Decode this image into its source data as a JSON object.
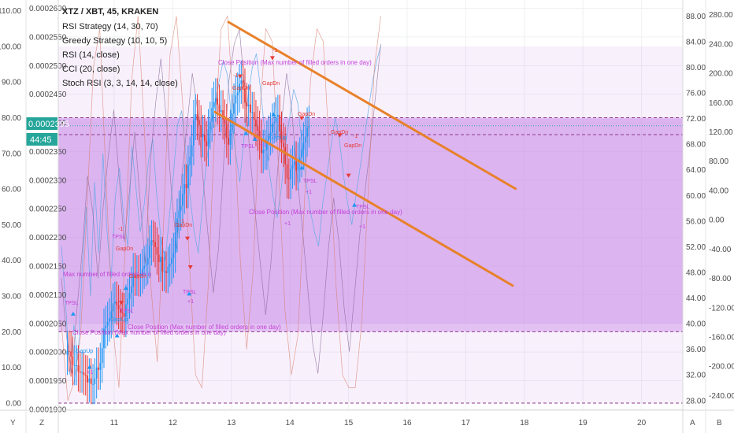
{
  "legend": {
    "symbol": "XTZ / XBT, 45, KRAKEN",
    "studies": [
      "RSI Strategy (14, 30, 70)",
      "Greedy Strategy (10, 10, 5)",
      "RSI (14, close)",
      "CCI (20, close)",
      "Stoch RSI (3, 3, 14, 14, close)"
    ]
  },
  "price_tag": {
    "value": "0.0002395",
    "countdown": "44:45",
    "color": "#26a69a"
  },
  "bottom_buttons": {
    "left_y": "Y",
    "left_z": "Z",
    "right_a": "A",
    "right_b": "B"
  },
  "annotations": [
    "Close Position (Max number of filled orders in one day)",
    "Close Position (Max number of filled orders in one day)",
    "Max number of filled orders in o",
    "Close Position (Max number of filled orders in one day)",
    "Close Position (Max number of filled orders in one day)"
  ],
  "marker_labels": {
    "gapdn": "GapDn",
    "gapup": "GapUp",
    "tpsl": "TPSL",
    "plus1": "+1",
    "minus1": "-1"
  },
  "colors": {
    "up": "#2196f3",
    "down": "#e53935",
    "trend": "#e8812a",
    "band_fill": "#c98ae8",
    "band_edge": "#8e3a8e",
    "annotation": "#c23fd6"
  },
  "chart_data": {
    "type": "line",
    "title": "XTZ / XBT, 45, KRAKEN",
    "x_ticks": [
      "11",
      "12",
      "13",
      "14",
      "15",
      "16",
      "17",
      "18",
      "19",
      "20"
    ],
    "price_axis": {
      "ticks": [
        "0.0002600",
        "0.0002550",
        "0.0002500",
        "0.0002450",
        "0.0002400",
        "0.0002350",
        "0.0002300",
        "0.0002250",
        "0.0002200",
        "0.0002150",
        "0.0002100",
        "0.0002050",
        "0.0002000",
        "0.0001950",
        "0.0001900"
      ],
      "range": [
        0.00018985,
        0.00026145
      ]
    },
    "rsi_axis": {
      "ticks": [
        "110.00",
        "100.00",
        "90.00",
        "80.00",
        "70.00",
        "60.00",
        "50.00",
        "40.00",
        "30.00",
        "20.00",
        "10.00",
        "0.00"
      ],
      "range": [
        -2,
        113
      ],
      "bands": [
        20,
        80
      ]
    },
    "stoch_axis": {
      "ticks": [
        "88.00",
        "84.00",
        "80.00",
        "76.00",
        "72.00",
        "68.00",
        "64.00",
        "60.00",
        "56.00",
        "52.00",
        "48.00",
        "44.00",
        "40.00",
        "36.00",
        "32.00",
        "28.00"
      ],
      "range": [
        26.5,
        90.5
      ]
    },
    "cci_axis": {
      "ticks": [
        "280.00",
        "240.00",
        "200.00",
        "160.00",
        "120.00",
        "80.00",
        "40.00",
        "0.00",
        "-40.00",
        "-80.00",
        "-120.00",
        "-160.00",
        "-200.00",
        "-240.00"
      ],
      "range": [
        -260,
        300
      ]
    },
    "series": [
      {
        "name": "XTZ / XBT",
        "kind": "candles",
        "start_day": 10.2,
        "step_day": 0.03125,
        "open": [
          0.0001995,
          0.0002002,
          0.0002001,
          0.0001992,
          0.0001977,
          0.0001977,
          0.0001977,
          0.0001966,
          0.0001964,
          0.0001965,
          0.000196,
          0.0001959,
          0.0001947,
          0.0001954,
          0.0001944,
          0.0001944,
          0.0001954,
          0.0001973,
          0.0001969,
          0.0001981,
          0.0002007,
          0.0002041,
          0.0002046,
          0.0002053,
          0.0002059,
          0.0002071,
          0.0002085,
          0.0002088,
          0.0002082,
          0.0002075,
          0.0002069,
          0.0002068,
          0.0002061,
          0.0002083,
          0.0002093,
          0.0002103,
          0.0002114,
          0.0002138,
          0.0002133,
          0.0002134,
          0.0002132,
          0.0002137,
          0.0002145,
          0.000215,
          0.0002153,
          0.0002164,
          0.0002186,
          0.0002195,
          0.0002192,
          0.0002183,
          0.000217,
          0.0002157,
          0.0002166,
          0.0002141,
          0.0002141,
          0.0002138,
          0.0002149,
          0.0002154,
          0.0002164,
          0.0002173,
          0.0002209,
          0.0002233,
          0.0002247,
          0.0002255,
          0.0002276,
          0.0002293,
          0.0002286,
          0.0002326,
          0.0002341,
          0.0002361,
          0.0002405,
          0.0002415,
          0.0002405,
          0.0002396,
          0.0002375,
          0.0002379,
          0.0002368,
          0.0002359,
          0.0002389,
          0.0002402,
          0.0002426,
          0.0002437,
          0.0002443,
          0.0002432,
          0.0002419,
          0.0002422,
          0.0002406,
          0.0002398,
          0.0002374,
          0.0002362,
          0.0002388,
          0.0002416,
          0.0002434,
          0.0002448,
          0.0002453,
          0.0002468,
          0.0002474,
          0.000246,
          0.0002435,
          0.0002429,
          0.0002432,
          0.0002418,
          0.0002419,
          0.0002405,
          0.0002394,
          0.0002386,
          0.0002371,
          0.0002347,
          0.0002353,
          0.0002353,
          0.0002369,
          0.0002378,
          0.0002383,
          0.0002399,
          0.0002401,
          0.000241,
          0.0002414,
          0.0002385,
          0.0002365,
          0.0002358,
          0.0002328,
          0.0002303,
          0.0002302,
          0.000232,
          0.0002326,
          0.0002333,
          0.0002317,
          0.0002331,
          0.000234,
          0.0002353,
          0.0002366,
          0.0002376,
          0.0002392
        ],
        "close": [
          0.0002002,
          0.0002001,
          0.0001992,
          0.0001977,
          0.0001977,
          0.0001977,
          0.0001966,
          0.0001964,
          0.0001965,
          0.000196,
          0.0001959,
          0.0001947,
          0.0001954,
          0.0001944,
          0.0001944,
          0.0001954,
          0.0001973,
          0.0001969,
          0.0001981,
          0.0002007,
          0.0002041,
          0.0002046,
          0.0002053,
          0.0002059,
          0.0002071,
          0.0002085,
          0.0002088,
          0.0002082,
          0.0002075,
          0.0002069,
          0.0002068,
          0.0002061,
          0.0002083,
          0.0002093,
          0.0002103,
          0.0002114,
          0.0002138,
          0.0002133,
          0.0002134,
          0.0002132,
          0.0002137,
          0.0002145,
          0.000215,
          0.0002153,
          0.0002164,
          0.0002186,
          0.0002195,
          0.0002192,
          0.0002183,
          0.000217,
          0.0002157,
          0.0002166,
          0.0002141,
          0.0002141,
          0.0002138,
          0.0002149,
          0.0002154,
          0.0002164,
          0.0002173,
          0.0002209,
          0.0002233,
          0.0002247,
          0.0002255,
          0.0002276,
          0.0002293,
          0.0002286,
          0.0002326,
          0.0002341,
          0.0002361,
          0.0002405,
          0.0002415,
          0.0002405,
          0.0002396,
          0.0002375,
          0.0002379,
          0.0002368,
          0.0002359,
          0.0002389,
          0.0002402,
          0.0002426,
          0.0002437,
          0.0002443,
          0.0002432,
          0.0002419,
          0.0002422,
          0.0002406,
          0.0002398,
          0.0002374,
          0.0002362,
          0.0002388,
          0.0002416,
          0.0002434,
          0.0002448,
          0.0002453,
          0.0002468,
          0.0002474,
          0.000246,
          0.0002435,
          0.0002429,
          0.0002432,
          0.0002418,
          0.0002419,
          0.0002405,
          0.0002394,
          0.0002386,
          0.0002371,
          0.0002347,
          0.0002353,
          0.0002353,
          0.0002369,
          0.0002378,
          0.0002383,
          0.0002399,
          0.0002401,
          0.000241,
          0.0002414,
          0.0002385,
          0.0002365,
          0.0002358,
          0.0002328,
          0.0002303,
          0.0002302,
          0.000232,
          0.0002326,
          0.0002333,
          0.0002317,
          0.0002331,
          0.000234,
          0.0002353,
          0.0002366,
          0.0002376,
          0.0002392,
          0.0002395
        ]
      },
      {
        "name": "RSI (14, close)",
        "kind": "rsi_line",
        "values": [
          44,
          28,
          8,
          22,
          12,
          38,
          55,
          30,
          62,
          42,
          70,
          48,
          35,
          58,
          66,
          52,
          44,
          72,
          60,
          48,
          56,
          68,
          74,
          58,
          46,
          40,
          52,
          64,
          78,
          82,
          70,
          58,
          48,
          42,
          56,
          68,
          76,
          84,
          90,
          96,
          92,
          80,
          70,
          62,
          74,
          86,
          94,
          98,
          88,
          76,
          66,
          58,
          52,
          60,
          72,
          80,
          88,
          84,
          72,
          62,
          54,
          48,
          44,
          56,
          64,
          72,
          80,
          74,
          64,
          56,
          50,
          58,
          66,
          74,
          82,
          90,
          96,
          100
        ]
      },
      {
        "name": "CCI (20, close)",
        "kind": "cci_line",
        "values": [
          -80,
          -160,
          -210,
          -120,
          -40,
          60,
          10,
          -80,
          20,
          90,
          150,
          60,
          -30,
          40,
          120,
          30,
          -60,
          80,
          160,
          220,
          140,
          40,
          -40,
          60,
          130,
          200,
          150,
          60,
          -20,
          -100,
          -40,
          80,
          190,
          240,
          260,
          180,
          90,
          10,
          -60,
          -130,
          -60,
          40,
          130,
          200,
          150,
          60,
          -10,
          -90,
          -170,
          -210,
          -130,
          -40,
          30,
          -30,
          -120,
          -180,
          -100,
          -20,
          40,
          100,
          170,
          240
        ]
      },
      {
        "name": "Stoch RSI",
        "kind": "stoch_line",
        "values": [
          40,
          28,
          31,
          38,
          58,
          80,
          86,
          62,
          40,
          30,
          52,
          78,
          88,
          70,
          46,
          34,
          56,
          82,
          88,
          74,
          50,
          32,
          30,
          46,
          70,
          86,
          88,
          72,
          50,
          36,
          48,
          72,
          86,
          84,
          64,
          42,
          32,
          38,
          58,
          78,
          86,
          84,
          66,
          46,
          32,
          30,
          30,
          40,
          60,
          80,
          88
        ]
      }
    ],
    "trendlines": [
      {
        "from": [
          12.95,
          0.0002576
        ],
        "to": [
          17.85,
          0.0002285
        ]
      },
      {
        "from": [
          12.72,
          0.0002419
        ],
        "to": [
          17.8,
          0.0002116
        ]
      }
    ]
  }
}
